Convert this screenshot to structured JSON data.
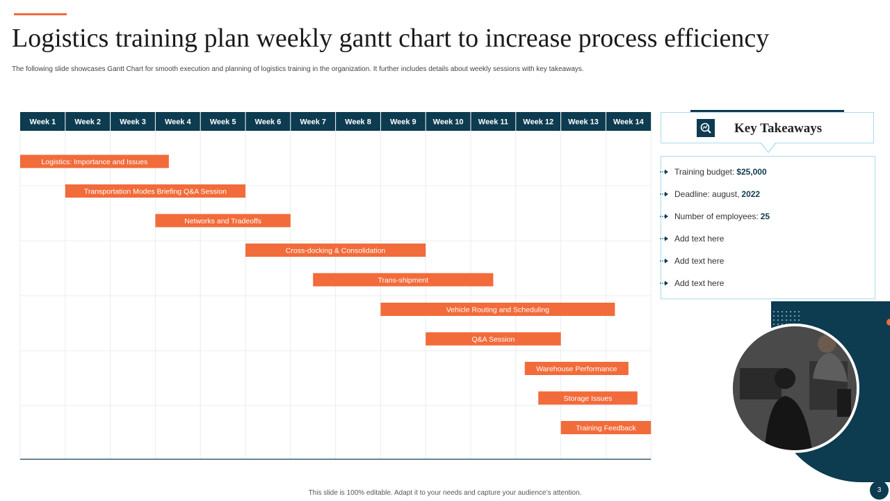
{
  "slide": {
    "title": "Logistics training plan weekly gantt chart to increase process efficiency",
    "subtitle": "The following slide showcases Gantt Chart for smooth execution and planning of logistics training in the organization. It further includes details about weekly sessions with key takeaways.",
    "footer": "This slide is 100% editable. Adapt it to your needs and capture your audience’s attention.",
    "page_number": "3"
  },
  "chart_data": {
    "type": "gantt",
    "title": "",
    "categories": [
      "Week 1",
      "Week 2",
      "Week 3",
      "Week 4",
      "Week 5",
      "Week 6",
      "Week 7",
      "Week 8",
      "Week 9",
      "Week 10",
      "Week 11",
      "Week 12",
      "Week 13",
      "Week 14"
    ],
    "tasks": [
      {
        "label": "Logistics: Importance and Issues",
        "start": 0,
        "end": 3.3
      },
      {
        "label": "Transportation Modes Briefing Q&A Session",
        "start": 1,
        "end": 5.0
      },
      {
        "label": "Networks and Tradeoffs",
        "start": 3,
        "end": 6.0
      },
      {
        "label": "Cross-docking & Consolidation",
        "start": 5,
        "end": 9.0
      },
      {
        "label": "Trans-shipment",
        "start": 6.5,
        "end": 10.5
      },
      {
        "label": "Vehicle Routing and Scheduling",
        "start": 8.0,
        "end": 13.2
      },
      {
        "label": "Q&A Session",
        "start": 9.0,
        "end": 12.0
      },
      {
        "label": "Warehouse Performance",
        "start": 11.2,
        "end": 13.5
      },
      {
        "label": "Storage Issues",
        "start": 11.5,
        "end": 13.7
      },
      {
        "label": "Training Feedback",
        "start": 12.0,
        "end": 14.0
      }
    ],
    "colors": {
      "header": "#0d3b50",
      "bar": "#f26b3a",
      "grid": "#e8ecef",
      "baseline": "#0d3b50"
    }
  },
  "takeaways": {
    "title": "Key Takeaways",
    "icon": "analytics-icon",
    "items": [
      {
        "label": "Training  budget:",
        "value": "$25,000"
      },
      {
        "label": "Deadline:  august,",
        "value": "2022"
      },
      {
        "label": "Number  of employees:",
        "value": "25"
      },
      {
        "label": "Add text here",
        "value": ""
      },
      {
        "label": "Add text here",
        "value": ""
      },
      {
        "label": "Add text here",
        "value": ""
      }
    ]
  }
}
